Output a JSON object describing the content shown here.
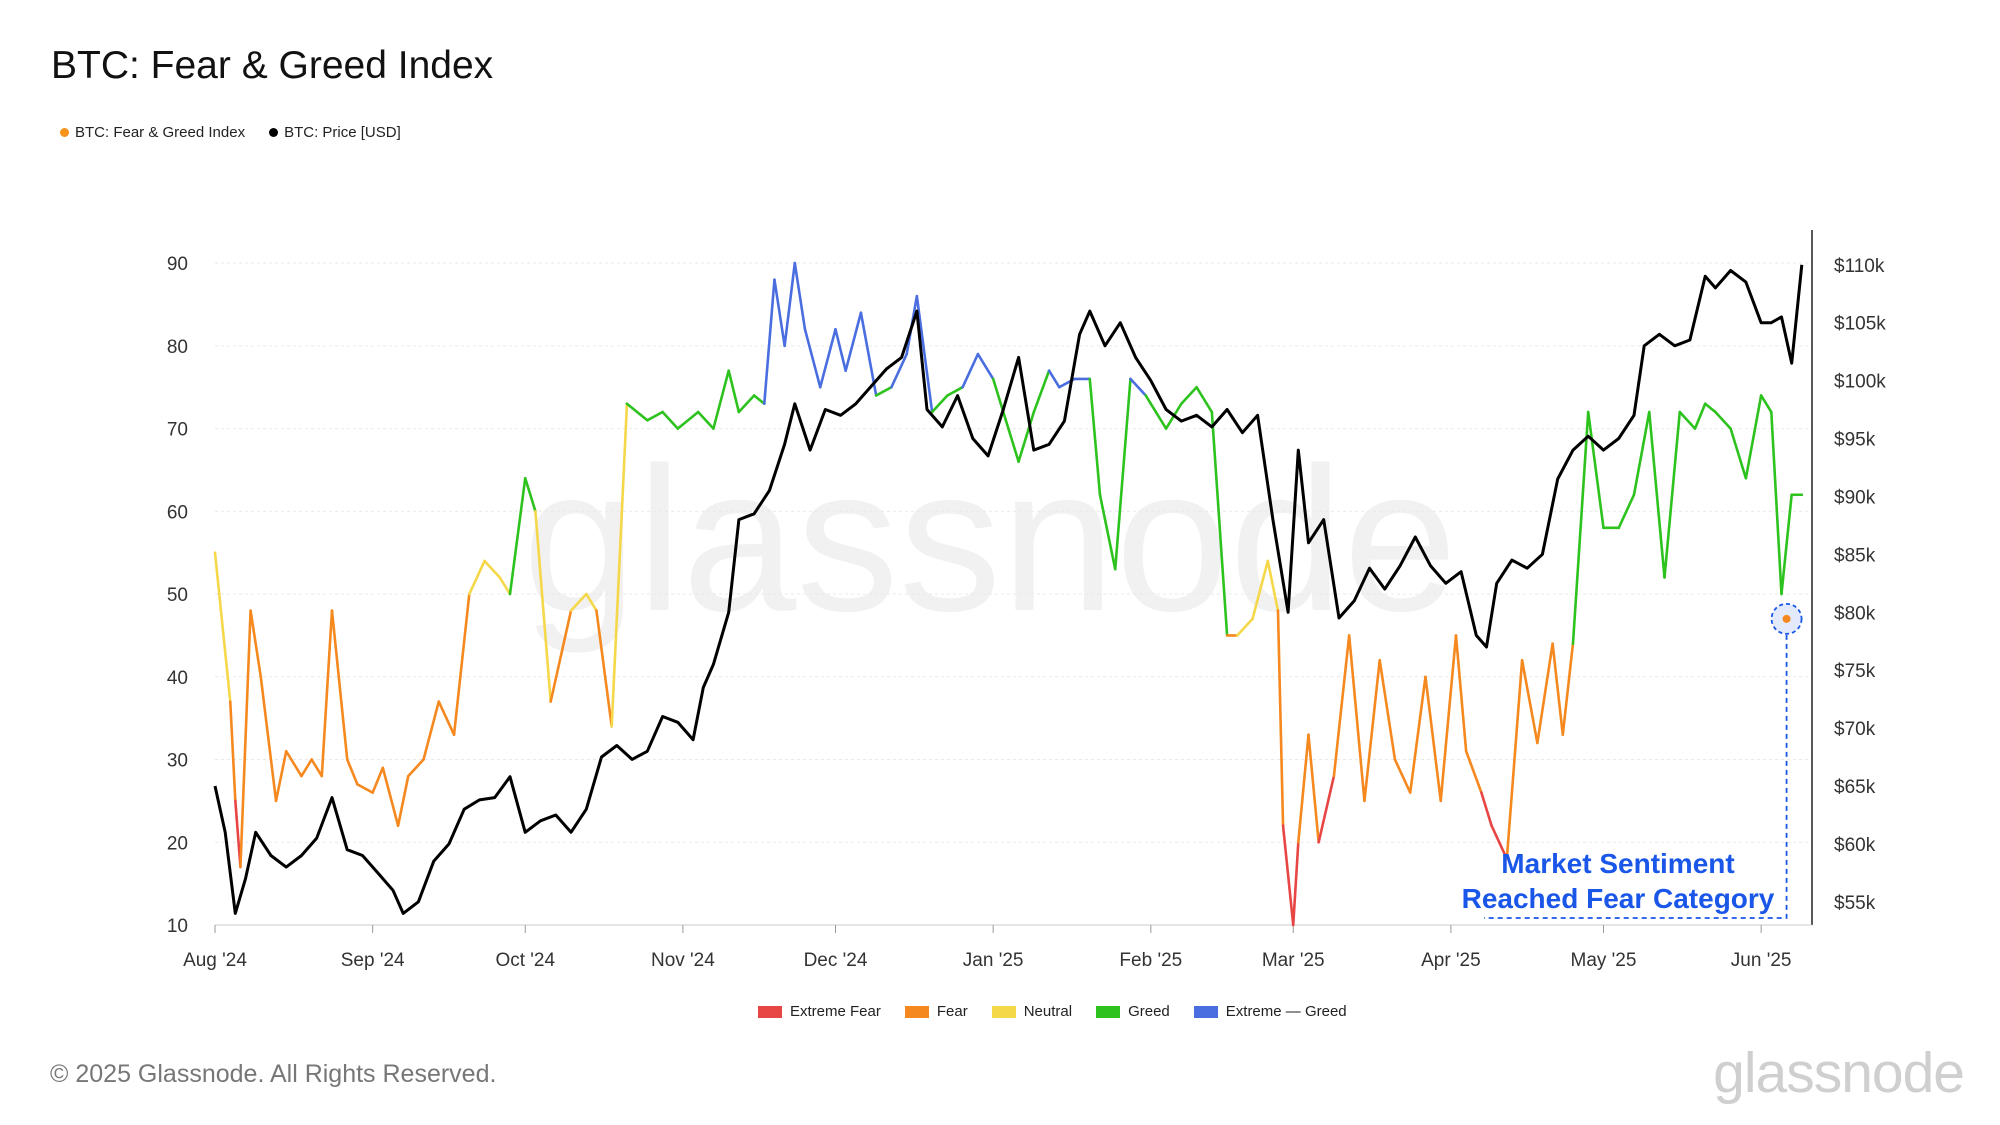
{
  "title": "BTC: Fear & Greed Index",
  "footer": "© 2025 Glassnode. All Rights Reserved.",
  "brand": "glassnode",
  "watermark": "glassnode",
  "top_legend": [
    {
      "label": "BTC: Fear & Greed Index",
      "color": "#f7931a"
    },
    {
      "label": "BTC: Price [USD]",
      "color": "#000000"
    }
  ],
  "zone_legend": [
    {
      "label": "Extreme Fear",
      "color": "#e84545"
    },
    {
      "label": "Fear",
      "color": "#f5891f"
    },
    {
      "label": "Neutral",
      "color": "#f5d84a"
    },
    {
      "label": "Greed",
      "color": "#2dc21e"
    },
    {
      "label": "Extreme — Greed",
      "color": "#4a6ee0"
    }
  ],
  "annotation": {
    "line1": "Market Sentiment",
    "line2": "Reached Fear Category",
    "color": "#1a56e8"
  },
  "chart_data": {
    "type": "line",
    "x_ticks": [
      "Aug '24",
      "Sep '24",
      "Oct '24",
      "Nov '24",
      "Dec '24",
      "Jan '25",
      "Feb '25",
      "Mar '25",
      "Apr '25",
      "May '25",
      "Jun '25"
    ],
    "left_axis": {
      "ticks": [
        10,
        20,
        30,
        40,
        50,
        60,
        70,
        80,
        90
      ],
      "range": [
        10,
        94
      ]
    },
    "right_axis": {
      "ticks": [
        "$55k",
        "$60k",
        "$65k",
        "$70k",
        "$75k",
        "$80k",
        "$85k",
        "$90k",
        "$95k",
        "$100k",
        "$105k",
        "$110k"
      ],
      "range": [
        53000,
        113000
      ]
    },
    "thresholds": {
      "extreme_fear_below": 25,
      "fear_below": 46,
      "neutral_below": 54,
      "greed_below": 75
    },
    "series": [
      {
        "name": "BTC: Fear & Greed Index",
        "axis": "left",
        "dates": [
          "2024-08-01",
          "2024-08-04",
          "2024-08-05",
          "2024-08-06",
          "2024-08-08",
          "2024-08-10",
          "2024-08-13",
          "2024-08-15",
          "2024-08-18",
          "2024-08-20",
          "2024-08-22",
          "2024-08-24",
          "2024-08-27",
          "2024-08-29",
          "2024-09-01",
          "2024-09-03",
          "2024-09-06",
          "2024-09-08",
          "2024-09-11",
          "2024-09-14",
          "2024-09-17",
          "2024-09-20",
          "2024-09-23",
          "2024-09-26",
          "2024-09-28",
          "2024-10-01",
          "2024-10-03",
          "2024-10-06",
          "2024-10-10",
          "2024-10-13",
          "2024-10-15",
          "2024-10-18",
          "2024-10-21",
          "2024-10-25",
          "2024-10-28",
          "2024-10-31",
          "2024-11-04",
          "2024-11-07",
          "2024-11-10",
          "2024-11-12",
          "2024-11-15",
          "2024-11-17",
          "2024-11-19",
          "2024-11-21",
          "2024-11-23",
          "2024-11-25",
          "2024-11-28",
          "2024-12-01",
          "2024-12-03",
          "2024-12-06",
          "2024-12-09",
          "2024-12-12",
          "2024-12-15",
          "2024-12-17",
          "2024-12-20",
          "2024-12-23",
          "2024-12-26",
          "2024-12-29",
          "2025-01-01",
          "2025-01-04",
          "2025-01-06",
          "2025-01-09",
          "2025-01-12",
          "2025-01-14",
          "2025-01-17",
          "2025-01-20",
          "2025-01-22",
          "2025-01-25",
          "2025-01-28",
          "2025-01-31",
          "2025-02-02",
          "2025-02-04",
          "2025-02-07",
          "2025-02-10",
          "2025-02-13",
          "2025-02-16",
          "2025-02-18",
          "2025-02-21",
          "2025-02-24",
          "2025-02-26",
          "2025-02-27",
          "2025-03-01",
          "2025-03-02",
          "2025-03-04",
          "2025-03-06",
          "2025-03-09",
          "2025-03-12",
          "2025-03-15",
          "2025-03-18",
          "2025-03-21",
          "2025-03-24",
          "2025-03-27",
          "2025-03-30",
          "2025-04-02",
          "2025-04-04",
          "2025-04-07",
          "2025-04-09",
          "2025-04-12",
          "2025-04-15",
          "2025-04-18",
          "2025-04-21",
          "2025-04-23",
          "2025-04-25",
          "2025-04-28",
          "2025-05-01",
          "2025-05-04",
          "2025-05-07",
          "2025-05-10",
          "2025-05-13",
          "2025-05-16",
          "2025-05-19",
          "2025-05-21",
          "2025-05-23",
          "2025-05-26",
          "2025-05-29",
          "2025-06-01",
          "2025-06-03",
          "2025-06-05",
          "2025-06-07",
          "2025-06-09"
        ],
        "values": [
          55,
          37,
          25,
          17,
          48,
          40,
          25,
          31,
          28,
          30,
          28,
          48,
          30,
          27,
          26,
          29,
          22,
          28,
          30,
          37,
          33,
          50,
          54,
          52,
          50,
          64,
          60,
          37,
          48,
          50,
          48,
          34,
          73,
          71,
          72,
          70,
          72,
          70,
          77,
          72,
          74,
          73,
          88,
          80,
          90,
          82,
          75,
          82,
          77,
          84,
          74,
          75,
          79,
          86,
          72,
          74,
          75,
          79,
          76,
          70,
          66,
          72,
          77,
          75,
          76,
          76,
          62,
          53,
          76,
          74,
          72,
          70,
          73,
          75,
          72,
          45,
          45,
          47,
          54,
          48,
          22,
          10,
          20,
          33,
          20,
          28,
          45,
          25,
          42,
          30,
          26,
          40,
          25,
          45,
          31,
          26,
          22,
          18,
          42,
          32,
          44,
          33,
          44,
          72,
          58,
          58,
          62,
          72,
          52,
          72,
          70,
          73,
          72,
          70,
          64,
          74,
          72,
          50,
          62,
          62
        ]
      },
      {
        "name": "BTC: Price [USD]",
        "axis": "right",
        "dates": [
          "2024-08-01",
          "2024-08-03",
          "2024-08-05",
          "2024-08-07",
          "2024-08-09",
          "2024-08-12",
          "2024-08-15",
          "2024-08-18",
          "2024-08-21",
          "2024-08-24",
          "2024-08-27",
          "2024-08-30",
          "2024-09-02",
          "2024-09-05",
          "2024-09-07",
          "2024-09-10",
          "2024-09-13",
          "2024-09-16",
          "2024-09-19",
          "2024-09-22",
          "2024-09-25",
          "2024-09-28",
          "2024-10-01",
          "2024-10-04",
          "2024-10-07",
          "2024-10-10",
          "2024-10-13",
          "2024-10-16",
          "2024-10-19",
          "2024-10-22",
          "2024-10-25",
          "2024-10-28",
          "2024-10-31",
          "2024-11-03",
          "2024-11-05",
          "2024-11-07",
          "2024-11-10",
          "2024-11-12",
          "2024-11-15",
          "2024-11-18",
          "2024-11-21",
          "2024-11-23",
          "2024-11-26",
          "2024-11-29",
          "2024-12-02",
          "2024-12-05",
          "2024-12-08",
          "2024-12-11",
          "2024-12-14",
          "2024-12-17",
          "2024-12-19",
          "2024-12-22",
          "2024-12-25",
          "2024-12-28",
          "2024-12-31",
          "2025-01-03",
          "2025-01-06",
          "2025-01-09",
          "2025-01-12",
          "2025-01-15",
          "2025-01-18",
          "2025-01-20",
          "2025-01-23",
          "2025-01-26",
          "2025-01-29",
          "2025-02-01",
          "2025-02-04",
          "2025-02-07",
          "2025-02-10",
          "2025-02-13",
          "2025-02-16",
          "2025-02-19",
          "2025-02-22",
          "2025-02-25",
          "2025-02-28",
          "2025-03-02",
          "2025-03-04",
          "2025-03-07",
          "2025-03-10",
          "2025-03-13",
          "2025-03-16",
          "2025-03-19",
          "2025-03-22",
          "2025-03-25",
          "2025-03-28",
          "2025-03-31",
          "2025-04-03",
          "2025-04-06",
          "2025-04-08",
          "2025-04-10",
          "2025-04-13",
          "2025-04-16",
          "2025-04-19",
          "2025-04-22",
          "2025-04-25",
          "2025-04-28",
          "2025-05-01",
          "2025-05-04",
          "2025-05-07",
          "2025-05-09",
          "2025-05-12",
          "2025-05-15",
          "2025-05-18",
          "2025-05-21",
          "2025-05-23",
          "2025-05-26",
          "2025-05-29",
          "2025-06-01",
          "2025-06-03",
          "2025-06-05",
          "2025-06-07",
          "2025-06-09"
        ],
        "values": [
          65000,
          61000,
          54000,
          57000,
          61000,
          59000,
          58000,
          59000,
          60500,
          64000,
          59500,
          59000,
          57500,
          56000,
          54000,
          55000,
          58500,
          60000,
          63000,
          63800,
          64000,
          65800,
          61000,
          62000,
          62500,
          61000,
          63000,
          67500,
          68500,
          67300,
          68000,
          71000,
          70500,
          69000,
          73500,
          75500,
          80000,
          88000,
          88500,
          90500,
          94500,
          98000,
          94000,
          97500,
          97000,
          98000,
          99500,
          101000,
          102000,
          106000,
          97500,
          96000,
          98700,
          95000,
          93500,
          97500,
          102000,
          94000,
          94500,
          96500,
          104000,
          106000,
          103000,
          105000,
          102000,
          100000,
          97500,
          96500,
          97000,
          96000,
          97500,
          95500,
          97000,
          88000,
          80000,
          94000,
          86000,
          88000,
          79500,
          81000,
          83800,
          82000,
          84000,
          86500,
          84000,
          82500,
          83500,
          78000,
          77000,
          82500,
          84500,
          83800,
          85000,
          91500,
          94000,
          95200,
          94000,
          95000,
          97000,
          103000,
          104000,
          103000,
          103500,
          109000,
          108000,
          109500,
          108500,
          105000,
          105000,
          105500,
          101500,
          110000
        ]
      }
    ],
    "highlight": {
      "date": "2025-06-06",
      "value": 47
    }
  }
}
